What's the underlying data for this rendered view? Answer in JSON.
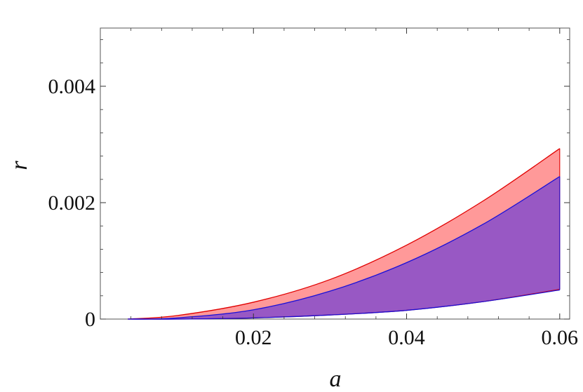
{
  "chart_data": {
    "type": "area",
    "xlabel": "a",
    "ylabel": "r",
    "xlim": [
      0.0,
      0.0613
    ],
    "ylim": [
      0.0,
      0.005
    ],
    "x_ticks": [
      0.02,
      0.04,
      0.06
    ],
    "x_tick_labels": [
      "0.02",
      "0.04",
      "0.06"
    ],
    "y_ticks": [
      0.0,
      0.002,
      0.004
    ],
    "y_tick_labels": [
      "0",
      "0.002",
      "0.004"
    ],
    "grid": false,
    "legend": "none",
    "series": [
      {
        "role": "upper_band",
        "fill_color": "#ff9999",
        "edge_color": "#e00000",
        "upper": {
          "x": [
            0.0036,
            0.01,
            0.02,
            0.03,
            0.04,
            0.05,
            0.06
          ],
          "y": [
            0.0,
            6e-05,
            0.00029,
            0.00068,
            0.00127,
            0.00203,
            0.00293
          ]
        },
        "lower": {
          "x": [
            0.0036,
            0.01,
            0.02,
            0.03,
            0.04,
            0.05,
            0.06
          ],
          "y": [
            0.0,
            0.0,
            2e-05,
            7e-05,
            0.00015,
            0.0003,
            0.00051
          ]
        }
      },
      {
        "role": "inner_band",
        "fill_color": "#9858c4",
        "edge_color": "#1a10d8",
        "upper": {
          "x": [
            0.0036,
            0.01,
            0.02,
            0.03,
            0.04,
            0.05,
            0.06
          ],
          "y": [
            0.0,
            2e-05,
            0.00016,
            0.00048,
            0.00097,
            0.00163,
            0.00245
          ]
        },
        "lower": {
          "x": [
            0.0036,
            0.01,
            0.02,
            0.03,
            0.04,
            0.05,
            0.06
          ],
          "y": [
            0.0,
            0.0,
            2e-05,
            7e-05,
            0.00015,
            0.0003,
            0.0005
          ]
        }
      }
    ]
  }
}
